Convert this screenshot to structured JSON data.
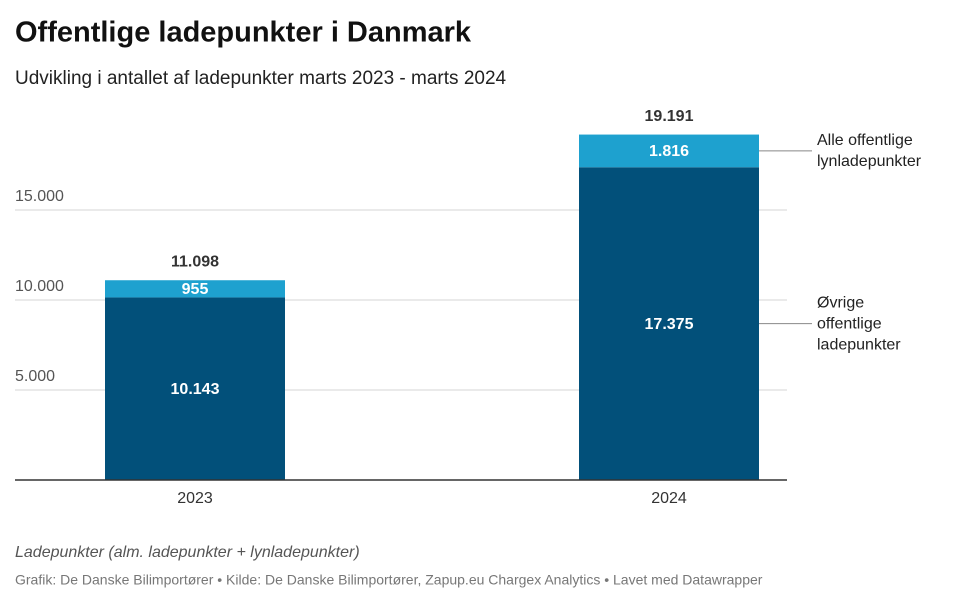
{
  "chart_data": {
    "type": "stacked-bar",
    "title": "Offentlige ladepunkter i Danmark",
    "subtitle": "Udvikling i antallet af ladepunkter marts 2023 - marts 2024",
    "categories": [
      "2023",
      "2024"
    ],
    "series": [
      {
        "name": "Øvrige offentlige ladepunkter",
        "color": "#02507a",
        "values": [
          10143,
          17375
        ],
        "value_labels": [
          "10.143",
          "17.375"
        ]
      },
      {
        "name": "Alle offentlige lynladepunkter",
        "color": "#1ea1cf",
        "values": [
          955,
          1816
        ],
        "value_labels": [
          "955",
          "1.816"
        ]
      }
    ],
    "totals": {
      "values": [
        11098,
        19191
      ],
      "value_labels": [
        "11.098",
        "19.191"
      ]
    },
    "ylim": [
      0,
      20000
    ],
    "yticks": [
      {
        "value": 5000,
        "label": "5.000"
      },
      {
        "value": 10000,
        "label": "10.000"
      },
      {
        "value": 15000,
        "label": "15.000"
      }
    ],
    "grid": true,
    "note": "Ladepunkter (alm. ladepunkter + lynladepunkter)",
    "source": "Grafik: De Danske Bilimportører • Kilde: De Danske Bilimportører, Zapup.eu Chargex Analytics • Lavet med Datawrapper"
  }
}
